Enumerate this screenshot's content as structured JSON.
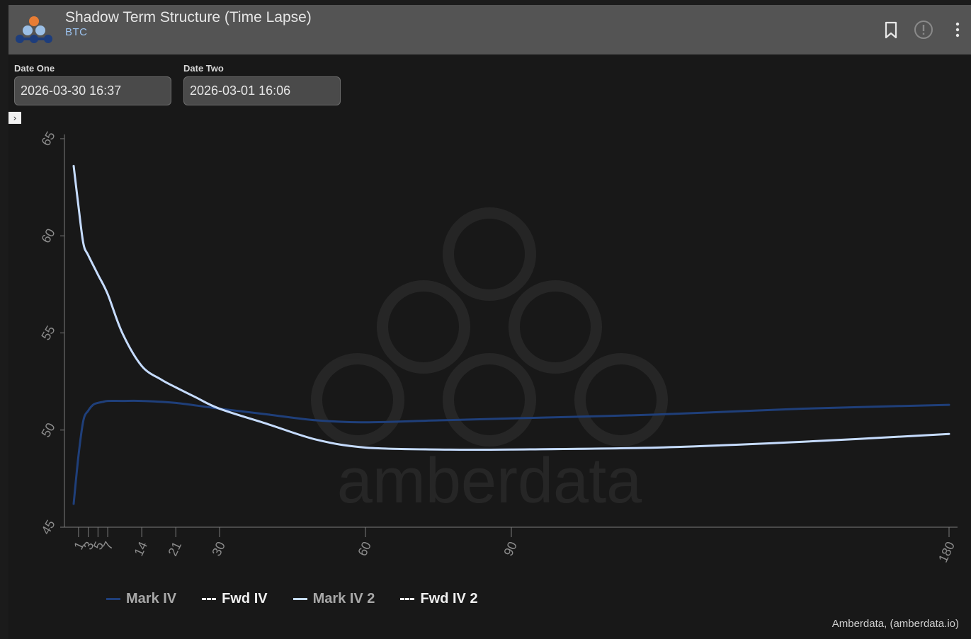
{
  "header": {
    "title": "Shadow Term Structure (Time Lapse)",
    "subtitle": "BTC",
    "icons": [
      "bookmark-icon",
      "info-icon",
      "more-vertical-icon"
    ]
  },
  "filters": {
    "date_one_label": "Date One",
    "date_one_value": "2026-03-30 16:37",
    "date_two_label": "Date Two",
    "date_two_value": "2026-03-01 16:06"
  },
  "toggle_glyph": "›",
  "watermark": "amberdata",
  "credit": "Amberdata, (amberdata.io)",
  "colors": {
    "mark_iv": "#1f3f7a",
    "mark_iv_2": "#c6dcff",
    "fwd": "#f0f0f0",
    "axis": "#7a7a7a"
  },
  "chart_data": {
    "type": "line",
    "xlabel": "",
    "ylabel": "",
    "ylim": [
      45,
      65
    ],
    "xlim": [
      0,
      180
    ],
    "x_ticks": [
      1,
      3,
      5,
      7,
      14,
      21,
      30,
      60,
      90,
      180
    ],
    "y_ticks": [
      45,
      50,
      55,
      60,
      65
    ],
    "legend_position": "bottom",
    "series": [
      {
        "name": "Mark IV",
        "style": "solid",
        "color": "#1f3f7a",
        "x": [
          0,
          1,
          2,
          3,
          4,
          5,
          6,
          7,
          10,
          14,
          21,
          30,
          40,
          50,
          60,
          75,
          90,
          120,
          150,
          180
        ],
        "y": [
          46.2,
          48.7,
          50.5,
          51.0,
          51.3,
          51.4,
          51.45,
          51.5,
          51.5,
          51.5,
          51.4,
          51.1,
          50.8,
          50.5,
          50.4,
          50.5,
          50.6,
          50.8,
          51.1,
          51.3
        ]
      },
      {
        "name": "Fwd IV",
        "style": "dashed",
        "color": "#f0f0f0",
        "x": [],
        "y": []
      },
      {
        "name": "Mark IV 2",
        "style": "solid",
        "color": "#c6dcff",
        "x": [
          0,
          1,
          2,
          3,
          5,
          7,
          10,
          14,
          18,
          21,
          25,
          30,
          40,
          50,
          60,
          75,
          90,
          120,
          150,
          180
        ],
        "y": [
          63.6,
          61.5,
          59.6,
          59.0,
          58.0,
          57.0,
          55.0,
          53.3,
          52.6,
          52.2,
          51.7,
          51.1,
          50.3,
          49.5,
          49.1,
          49.0,
          49.0,
          49.1,
          49.4,
          49.8
        ]
      },
      {
        "name": "Fwd IV 2",
        "style": "dashed",
        "color": "#f0f0f0",
        "x": [],
        "y": []
      }
    ],
    "legend": [
      {
        "label": "Mark IV",
        "style": "solid",
        "color": "#1f3f7a",
        "text_color": "#a8a8a8"
      },
      {
        "label": "Fwd IV",
        "style": "dashed",
        "color": "#f0f0f0",
        "text_color": "#f0f0f0"
      },
      {
        "label": "Mark IV 2",
        "style": "solid",
        "color": "#c6dcff",
        "text_color": "#a8a8a8"
      },
      {
        "label": "Fwd IV 2",
        "style": "dashed",
        "color": "#f0f0f0",
        "text_color": "#f0f0f0"
      }
    ]
  }
}
